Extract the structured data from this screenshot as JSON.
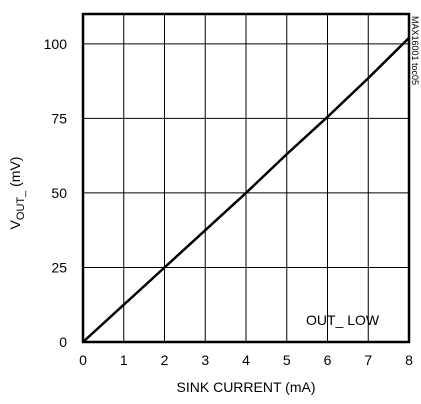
{
  "chart_data": {
    "type": "line",
    "title": "",
    "xlabel": "SINK CURRENT (mA)",
    "ylabel_main": "V",
    "ylabel_sub": "OUT_",
    "ylabel_unit": " (mV)",
    "xlim": [
      0,
      8
    ],
    "ylim": [
      0,
      110
    ],
    "x_ticks": [
      0,
      1,
      2,
      3,
      4,
      5,
      6,
      7,
      8
    ],
    "x_tick_labels": [
      "0",
      "1",
      "2",
      "3",
      "4",
      "5",
      "6",
      "7",
      "8"
    ],
    "y_ticks": [
      0,
      25,
      50,
      75,
      100
    ],
    "y_tick_labels": [
      "0",
      "25",
      "50",
      "75",
      "100"
    ],
    "grid": true,
    "series": [
      {
        "x": [
          0,
          1,
          2,
          3,
          4,
          5,
          6,
          7,
          8
        ],
        "y": [
          0,
          12.5,
          25,
          37.5,
          50,
          63,
          75.5,
          88.5,
          102
        ],
        "color": "#000000"
      }
    ],
    "annotation": "OUT_ LOW",
    "side_code": "MAX16001 toc05"
  }
}
